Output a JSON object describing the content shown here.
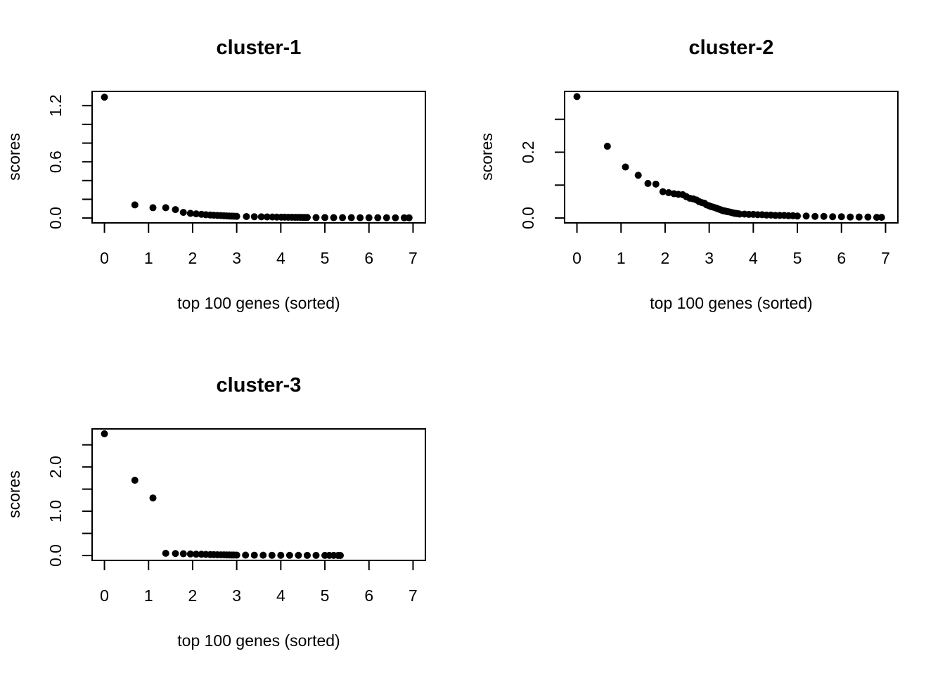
{
  "figure": {
    "background": "#ffffff",
    "point_color": "#000000"
  },
  "chart_data": [
    {
      "type": "scatter",
      "title": "cluster-1",
      "xlabel": "top 100 genes (sorted)",
      "ylabel": "scores",
      "xlim": [
        0,
        7
      ],
      "ylim": [
        0,
        1.3
      ],
      "xticks": [
        0,
        1,
        2,
        3,
        4,
        5,
        6,
        7
      ],
      "xtick_labels": [
        "0",
        "1",
        "2",
        "3",
        "4",
        "5",
        "6",
        "7"
      ],
      "yticks": [
        0.0,
        0.2,
        0.4,
        0.6,
        0.8,
        1.0,
        1.2
      ],
      "ytick_labels": [
        "0.0",
        "",
        "",
        "0.6",
        "",
        "",
        "1.2"
      ],
      "x": [
        0.0,
        0.69,
        1.1,
        1.39,
        1.61,
        1.79,
        1.95,
        2.08,
        2.2,
        2.3,
        2.4,
        2.48,
        2.56,
        2.64,
        2.71,
        2.77,
        2.83,
        2.89,
        2.94,
        3.0,
        3.22,
        3.4,
        3.56,
        3.69,
        3.81,
        3.91,
        4.01,
        4.09,
        4.17,
        4.25,
        4.32,
        4.38,
        4.44,
        4.5,
        4.55,
        4.6,
        4.8,
        5.0,
        5.2,
        5.4,
        5.6,
        5.8,
        6.0,
        6.2,
        6.4,
        6.6,
        6.8,
        6.91
      ],
      "y": [
        1.29,
        0.14,
        0.11,
        0.11,
        0.09,
        0.06,
        0.05,
        0.045,
        0.04,
        0.035,
        0.032,
        0.03,
        0.028,
        0.026,
        0.024,
        0.022,
        0.021,
        0.02,
        0.019,
        0.018,
        0.016,
        0.014,
        0.013,
        0.012,
        0.011,
        0.01,
        0.009,
        0.009,
        0.008,
        0.008,
        0.007,
        0.007,
        0.007,
        0.006,
        0.006,
        0.006,
        0.005,
        0.005,
        0.004,
        0.004,
        0.004,
        0.003,
        0.003,
        0.003,
        0.003,
        0.002,
        0.002,
        0.002
      ]
    },
    {
      "type": "scatter",
      "title": "cluster-2",
      "xlabel": "top 100 genes (sorted)",
      "ylabel": "scores",
      "xlim": [
        0,
        7
      ],
      "ylim": [
        0,
        0.37
      ],
      "xticks": [
        0,
        1,
        2,
        3,
        4,
        5,
        6,
        7
      ],
      "xtick_labels": [
        "0",
        "1",
        "2",
        "3",
        "4",
        "5",
        "6",
        "7"
      ],
      "yticks": [
        0.0,
        0.1,
        0.2,
        0.3
      ],
      "ytick_labels": [
        "0.0",
        "",
        "0.2",
        ""
      ],
      "x": [
        0.0,
        0.69,
        1.1,
        1.39,
        1.61,
        1.79,
        1.95,
        2.08,
        2.2,
        2.3,
        2.4,
        2.48,
        2.56,
        2.64,
        2.71,
        2.77,
        2.83,
        2.89,
        2.94,
        3.0,
        3.04,
        3.09,
        3.14,
        3.18,
        3.22,
        3.26,
        3.3,
        3.33,
        3.37,
        3.4,
        3.43,
        3.47,
        3.5,
        3.53,
        3.56,
        3.58,
        3.61,
        3.64,
        3.66,
        3.69,
        3.8,
        3.9,
        4.0,
        4.1,
        4.2,
        4.3,
        4.4,
        4.5,
        4.6,
        4.7,
        4.8,
        4.9,
        5.0,
        5.2,
        5.4,
        5.6,
        5.8,
        6.0,
        6.2,
        6.4,
        6.6,
        6.8,
        6.91
      ],
      "y": [
        0.369,
        0.218,
        0.155,
        0.13,
        0.105,
        0.103,
        0.08,
        0.077,
        0.074,
        0.072,
        0.071,
        0.065,
        0.06,
        0.058,
        0.055,
        0.05,
        0.047,
        0.045,
        0.04,
        0.037,
        0.035,
        0.033,
        0.031,
        0.029,
        0.027,
        0.025,
        0.023,
        0.022,
        0.021,
        0.02,
        0.019,
        0.018,
        0.017,
        0.016,
        0.015,
        0.014,
        0.014,
        0.013,
        0.013,
        0.012,
        0.012,
        0.011,
        0.011,
        0.01,
        0.01,
        0.009,
        0.009,
        0.008,
        0.008,
        0.008,
        0.007,
        0.007,
        0.006,
        0.006,
        0.005,
        0.005,
        0.004,
        0.004,
        0.003,
        0.003,
        0.003,
        0.002,
        0.002
      ]
    },
    {
      "type": "scatter",
      "title": "cluster-3",
      "xlabel": "top 100 genes (sorted)",
      "ylabel": "scores",
      "xlim": [
        0,
        7
      ],
      "ylim": [
        0,
        2.75
      ],
      "xticks": [
        0,
        1,
        2,
        3,
        4,
        5,
        6,
        7
      ],
      "xtick_labels": [
        "0",
        "1",
        "2",
        "3",
        "4",
        "5",
        "6",
        "7"
      ],
      "yticks": [
        0.0,
        0.5,
        1.0,
        1.5,
        2.0,
        2.5
      ],
      "ytick_labels": [
        "0.0",
        "",
        "1.0",
        "",
        "2.0",
        ""
      ],
      "x": [
        0.0,
        0.69,
        1.1,
        1.39,
        1.61,
        1.79,
        1.95,
        2.08,
        2.2,
        2.3,
        2.4,
        2.48,
        2.56,
        2.64,
        2.71,
        2.77,
        2.83,
        2.89,
        2.94,
        3.0,
        3.2,
        3.4,
        3.6,
        3.8,
        4.0,
        4.2,
        4.4,
        4.6,
        4.8,
        5.0,
        5.1,
        5.2,
        5.3,
        5.35
      ],
      "y": [
        2.75,
        1.7,
        1.3,
        0.05,
        0.045,
        0.04,
        0.035,
        0.03,
        0.028,
        0.025,
        0.022,
        0.02,
        0.018,
        0.016,
        0.015,
        0.014,
        0.013,
        0.012,
        0.011,
        0.01,
        0.009,
        0.008,
        0.007,
        0.006,
        0.006,
        0.005,
        0.005,
        0.004,
        0.004,
        0.003,
        0.003,
        0.003,
        0.002,
        0.002
      ]
    }
  ]
}
